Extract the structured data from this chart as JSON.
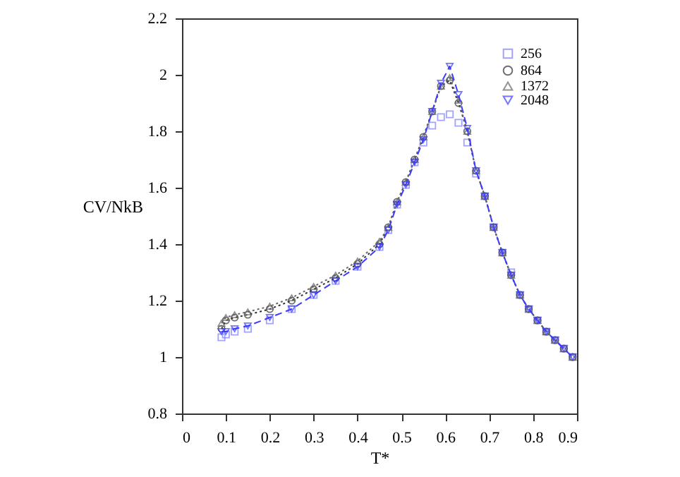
{
  "chart_data": {
    "type": "line",
    "xlabel": "T*",
    "ylabel": "CV/NkB",
    "xlim": [
      0,
      0.9
    ],
    "xticks": [
      0,
      0.1,
      0.2,
      0.3,
      0.4,
      0.5,
      0.6,
      0.7,
      0.8,
      0.9
    ],
    "ylim": [
      0.8,
      2.2
    ],
    "yticks": [
      0.8,
      1,
      1.2,
      1.4,
      1.6,
      1.8,
      2,
      2.2
    ],
    "grid": false,
    "legend": "top right",
    "x": [
      0.09,
      0.1,
      0.12,
      0.15,
      0.2,
      0.25,
      0.3,
      0.35,
      0.4,
      0.45,
      0.47,
      0.49,
      0.51,
      0.53,
      0.55,
      0.57,
      0.59,
      0.61,
      0.63,
      0.65,
      0.67,
      0.69,
      0.71,
      0.73,
      0.75,
      0.77,
      0.79,
      0.81,
      0.83,
      0.85,
      0.87,
      0.89
    ],
    "series": [
      {
        "name": "256",
        "color": "#7b7bff",
        "type": "scatter",
        "marker": "square",
        "values": [
          1.07,
          1.08,
          1.09,
          1.1,
          1.13,
          1.17,
          1.22,
          1.27,
          1.32,
          1.39,
          1.45,
          1.54,
          1.61,
          1.69,
          1.76,
          1.82,
          1.85,
          1.86,
          1.83,
          1.76,
          1.65,
          1.57,
          1.46,
          1.37,
          1.3,
          1.22,
          1.17,
          1.13,
          1.09,
          1.06,
          1.03,
          1.0
        ]
      },
      {
        "name": "864",
        "color": "#333333",
        "marker": "circle",
        "line_style": "dotted",
        "values": [
          1.1,
          1.13,
          1.14,
          1.15,
          1.17,
          1.2,
          1.24,
          1.28,
          1.33,
          1.4,
          1.46,
          1.55,
          1.62,
          1.7,
          1.78,
          1.87,
          1.96,
          1.98,
          1.9,
          1.8,
          1.66,
          1.57,
          1.46,
          1.37,
          1.29,
          1.22,
          1.17,
          1.13,
          1.09,
          1.06,
          1.03,
          1.0
        ]
      },
      {
        "name": "1372",
        "color": "#666666",
        "marker": "triangle",
        "line_style": "dotted",
        "values": [
          1.12,
          1.14,
          1.15,
          1.16,
          1.18,
          1.21,
          1.25,
          1.29,
          1.34,
          1.41,
          1.46,
          1.55,
          1.62,
          1.7,
          1.78,
          1.87,
          1.96,
          1.99,
          1.91,
          1.8,
          1.66,
          1.57,
          1.46,
          1.37,
          1.29,
          1.22,
          1.17,
          1.13,
          1.09,
          1.06,
          1.03,
          1.0
        ]
      },
      {
        "name": "2048",
        "color": "#3c3cff",
        "marker": "triangle-down",
        "line_style": "dashed",
        "values": [
          1.09,
          1.09,
          1.1,
          1.11,
          1.14,
          1.17,
          1.22,
          1.27,
          1.32,
          1.39,
          1.45,
          1.54,
          1.61,
          1.69,
          1.77,
          1.87,
          1.97,
          2.03,
          1.93,
          1.81,
          1.66,
          1.57,
          1.46,
          1.37,
          1.29,
          1.22,
          1.17,
          1.13,
          1.09,
          1.06,
          1.03,
          1.0
        ]
      }
    ]
  }
}
